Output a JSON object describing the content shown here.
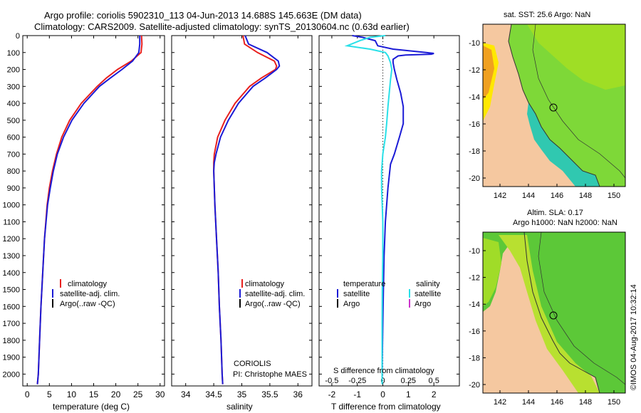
{
  "title": {
    "line1": "Argo profile: coriolis 5902310_113 04-Jun-2013 14.688S 145.663E (DM data)",
    "line2": "Climatology: CARS2009. Satellite-adjusted climatology: synTS_20130604.nc (0.63d earlier)"
  },
  "colors": {
    "climatology": "#e8201e",
    "satellite": "#1b1bd6",
    "argo": "#000000",
    "sat_salinity": "#29e0e8",
    "argo_salinity": "#cc33cc",
    "land": "#f5c8a0"
  },
  "depth_axis": {
    "ticks": [
      0,
      100,
      200,
      300,
      400,
      500,
      600,
      700,
      800,
      900,
      1000,
      1100,
      1200,
      1300,
      1400,
      1500,
      1600,
      1700,
      1800,
      1900,
      2000
    ],
    "range": [
      0,
      2070
    ]
  },
  "chart_data": [
    {
      "id": "temperature",
      "type": "line",
      "xlabel": "temperature (deg C)",
      "xlim": [
        -1,
        31
      ],
      "xticks": [
        0,
        5,
        10,
        15,
        20,
        25,
        30
      ],
      "xtick_labels": [
        "0",
        "5",
        "10",
        "15",
        "20",
        "25",
        "30"
      ],
      "legend": [
        "climatology",
        "satellite-adj. clim.",
        "Argo(..raw -QC)"
      ],
      "series": [
        {
          "name": "climatology",
          "depth": [
            0,
            50,
            100,
            150,
            200,
            250,
            300,
            400,
            500,
            600,
            700,
            800,
            900,
            1000,
            1200,
            1400,
            1600,
            1800,
            2000,
            2060
          ],
          "values": [
            25.8,
            25.9,
            25.7,
            23.5,
            20.4,
            17.9,
            15.8,
            12.2,
            9.6,
            7.8,
            6.6,
            5.7,
            5.0,
            4.5,
            3.9,
            3.5,
            3.1,
            2.8,
            2.5,
            2.3
          ]
        },
        {
          "name": "satellite-adj. clim.",
          "depth": [
            0,
            50,
            100,
            150,
            200,
            250,
            300,
            400,
            500,
            600,
            700,
            800,
            900,
            1000,
            1200,
            1400,
            1600,
            1800,
            2000,
            2060
          ],
          "values": [
            25.4,
            25.4,
            25.2,
            23.8,
            21.4,
            18.8,
            16.3,
            12.8,
            10.1,
            8.2,
            6.8,
            5.9,
            5.2,
            4.6,
            3.9,
            3.5,
            3.1,
            2.8,
            2.5,
            2.3
          ]
        }
      ]
    },
    {
      "id": "salinity",
      "type": "line",
      "xlabel": "salinity",
      "xlim": [
        33.75,
        36.25
      ],
      "xticks": [
        34,
        34.5,
        35,
        35.5,
        36
      ],
      "xtick_labels": [
        "34",
        "34.5",
        "35",
        "35.5",
        "36"
      ],
      "legend": [
        "climatology",
        "satellite-adj. clim.",
        "Argo(..raw -QC)"
      ],
      "annotation": [
        "CORIOLIS",
        "PI: Christophe MAES"
      ],
      "series": [
        {
          "name": "climatology",
          "depth": [
            0,
            50,
            100,
            150,
            180,
            200,
            250,
            300,
            400,
            500,
            600,
            700,
            750,
            800,
            900,
            1000,
            1200,
            1400,
            1600,
            1800,
            2000,
            2060
          ],
          "values": [
            35.02,
            35.05,
            35.28,
            35.58,
            35.62,
            35.6,
            35.35,
            35.14,
            34.88,
            34.7,
            34.57,
            34.51,
            34.5,
            34.5,
            34.51,
            34.52,
            34.55,
            34.58,
            34.6,
            34.63,
            34.65,
            34.66
          ]
        },
        {
          "name": "satellite-adj. clim.",
          "depth": [
            0,
            50,
            100,
            150,
            180,
            200,
            250,
            300,
            400,
            500,
            600,
            700,
            750,
            800,
            900,
            1000,
            1200,
            1400,
            1600,
            1800,
            2000,
            2060
          ],
          "values": [
            35.06,
            35.12,
            35.45,
            35.65,
            35.67,
            35.62,
            35.42,
            35.2,
            34.94,
            34.76,
            34.62,
            34.54,
            34.51,
            34.5,
            34.51,
            34.52,
            34.55,
            34.58,
            34.6,
            34.63,
            34.65,
            34.66
          ]
        }
      ]
    },
    {
      "id": "difference",
      "type": "line",
      "xlabel": "T difference from climatology",
      "top_label": "S difference from climatology",
      "xlim": [
        -2.5,
        3
      ],
      "xticks": [
        -2,
        -1,
        0,
        1,
        2
      ],
      "xtick_labels": [
        "-2",
        "-1",
        "0",
        "1",
        "2"
      ],
      "sticks": [
        -2,
        -1,
        0,
        1,
        2
      ],
      "stick_labels": [
        "-0.5",
        "-0.25",
        "0",
        "0.25",
        "0.5"
      ],
      "legend_headers": [
        "temperature",
        "salinity"
      ],
      "legend_left": [
        "satellite",
        "Argo"
      ],
      "legend_right": [
        "satellite",
        "Argo"
      ],
      "series": [
        {
          "name": "T satellite",
          "depth": [
            0,
            10,
            30,
            60,
            80,
            100,
            105,
            110,
            115,
            120,
            140,
            160,
            200,
            260,
            340,
            420,
            520,
            600,
            700,
            760,
            900,
            1100,
            1300,
            1500,
            1700,
            1900,
            2060
          ],
          "values": [
            -1.2,
            -0.8,
            -0.3,
            -0.2,
            0.4,
            1.7,
            2.0,
            1.9,
            0.9,
            0.6,
            0.4,
            0.4,
            0.45,
            0.55,
            0.7,
            0.8,
            0.8,
            0.65,
            0.45,
            0.3,
            0.2,
            0.1,
            0.05,
            0.02,
            0.0,
            -0.02,
            -0.03
          ]
        },
        {
          "name": "S satellite",
          "depth": [
            0,
            10,
            30,
            60,
            80,
            100,
            120,
            160,
            200,
            260,
            340,
            420,
            520,
            600,
            700,
            800,
            900,
            1100,
            1300,
            1500,
            1700,
            1900,
            2060
          ],
          "values": [
            0.1,
            -0.5,
            -0.9,
            -1.4,
            -0.5,
            0.1,
            0.2,
            0.3,
            0.35,
            0.3,
            0.25,
            0.2,
            0.15,
            0.1,
            0.0,
            -0.05,
            -0.05,
            0.0,
            0.0,
            -0.02,
            -0.03,
            -0.03,
            -0.03
          ]
        }
      ]
    }
  ],
  "maps": {
    "top": {
      "title": "sat. SST: 25.6 Argo: NaN",
      "xticks": [
        "142",
        "144",
        "146",
        "148",
        "150"
      ],
      "yticks": [
        "-10",
        "-12",
        "-14",
        "-16",
        "-18",
        "-20"
      ]
    },
    "bottom": {
      "title1": "Altim. SLA: 0.17",
      "title2": "Argo h1000: NaN h2000: NaN",
      "xticks": [
        "142",
        "144",
        "146",
        "148",
        "150"
      ],
      "yticks": [
        "-10",
        "-12",
        "-14",
        "-16",
        "-18",
        "-20"
      ]
    }
  },
  "stamp": "©IMOS 04-Aug-2017 10:32:14"
}
